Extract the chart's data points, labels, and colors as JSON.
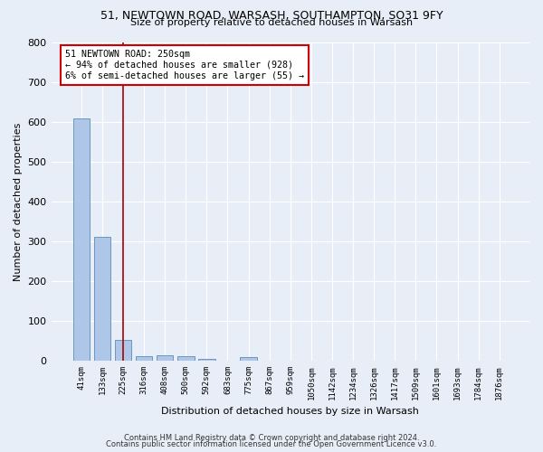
{
  "title1": "51, NEWTOWN ROAD, WARSASH, SOUTHAMPTON, SO31 9FY",
  "title2": "Size of property relative to detached houses in Warsash",
  "xlabel": "Distribution of detached houses by size in Warsash",
  "ylabel": "Number of detached properties",
  "bin_labels": [
    "41sqm",
    "133sqm",
    "225sqm",
    "316sqm",
    "408sqm",
    "500sqm",
    "592sqm",
    "683sqm",
    "775sqm",
    "867sqm",
    "959sqm",
    "1050sqm",
    "1142sqm",
    "1234sqm",
    "1326sqm",
    "1417sqm",
    "1509sqm",
    "1601sqm",
    "1693sqm",
    "1784sqm",
    "1876sqm"
  ],
  "bar_values": [
    608,
    311,
    52,
    11,
    13,
    11,
    6,
    0,
    9,
    0,
    0,
    0,
    0,
    0,
    0,
    0,
    0,
    0,
    0,
    0,
    0
  ],
  "bar_color": "#aec6e8",
  "bar_edge_color": "#5b8db8",
  "vline_x": 2.0,
  "vline_color": "#aa0000",
  "annotation_text": "51 NEWTOWN ROAD: 250sqm\n← 94% of detached houses are smaller (928)\n6% of semi-detached houses are larger (55) →",
  "annotation_box_color": "#ffffff",
  "annotation_box_edge": "#cc0000",
  "footer_line1": "Contains HM Land Registry data © Crown copyright and database right 2024.",
  "footer_line2": "Contains public sector information licensed under the Open Government Licence v3.0.",
  "bg_color": "#e8eef8",
  "ylim": [
    0,
    800
  ],
  "yticks": [
    0,
    100,
    200,
    300,
    400,
    500,
    600,
    700,
    800
  ]
}
